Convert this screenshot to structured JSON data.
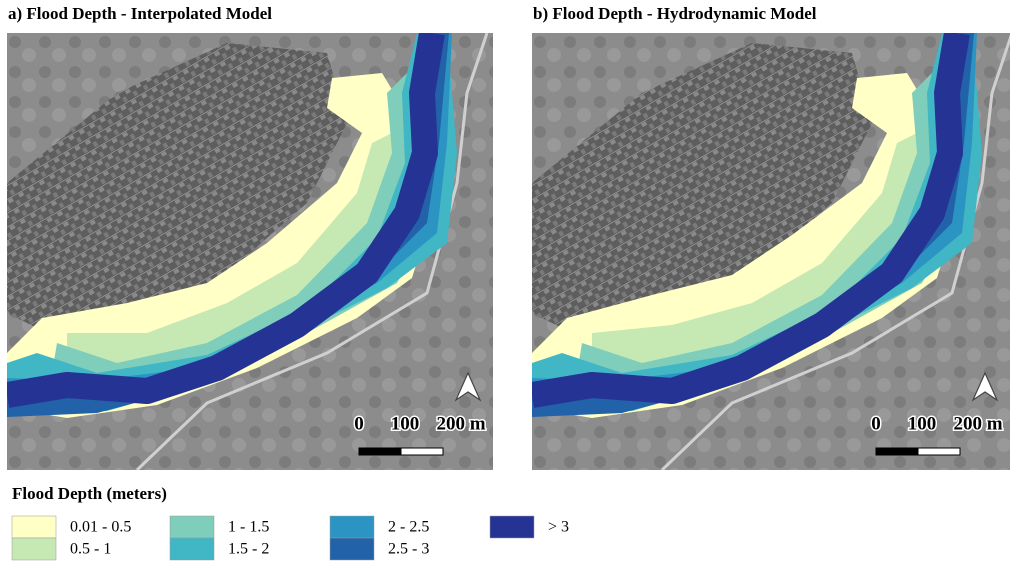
{
  "panels": [
    {
      "title": "a) Flood Depth - Interpolated Model",
      "scale_labels": [
        "0",
        "100",
        "200 m"
      ]
    },
    {
      "title": "b) Flood Depth - Hydrodynamic Model",
      "scale_labels": [
        "0",
        "100",
        "200 m"
      ]
    }
  ],
  "legend": {
    "title": "Flood Depth (meters)",
    "items": [
      {
        "label": "0.01 - 0.5",
        "color": "#ffffc6"
      },
      {
        "label": "0.5 - 1",
        "color": "#c6e9b4"
      },
      {
        "label": "1 - 1.5",
        "color": "#7fcdbb"
      },
      {
        "label": "1.5 - 2",
        "color": "#41b6c4"
      },
      {
        "label": "2 - 2.5",
        "color": "#2c94c2"
      },
      {
        "label": "2.5 - 3",
        "color": "#2262a8"
      },
      {
        "label": "> 3",
        "color": "#253494"
      }
    ]
  }
}
